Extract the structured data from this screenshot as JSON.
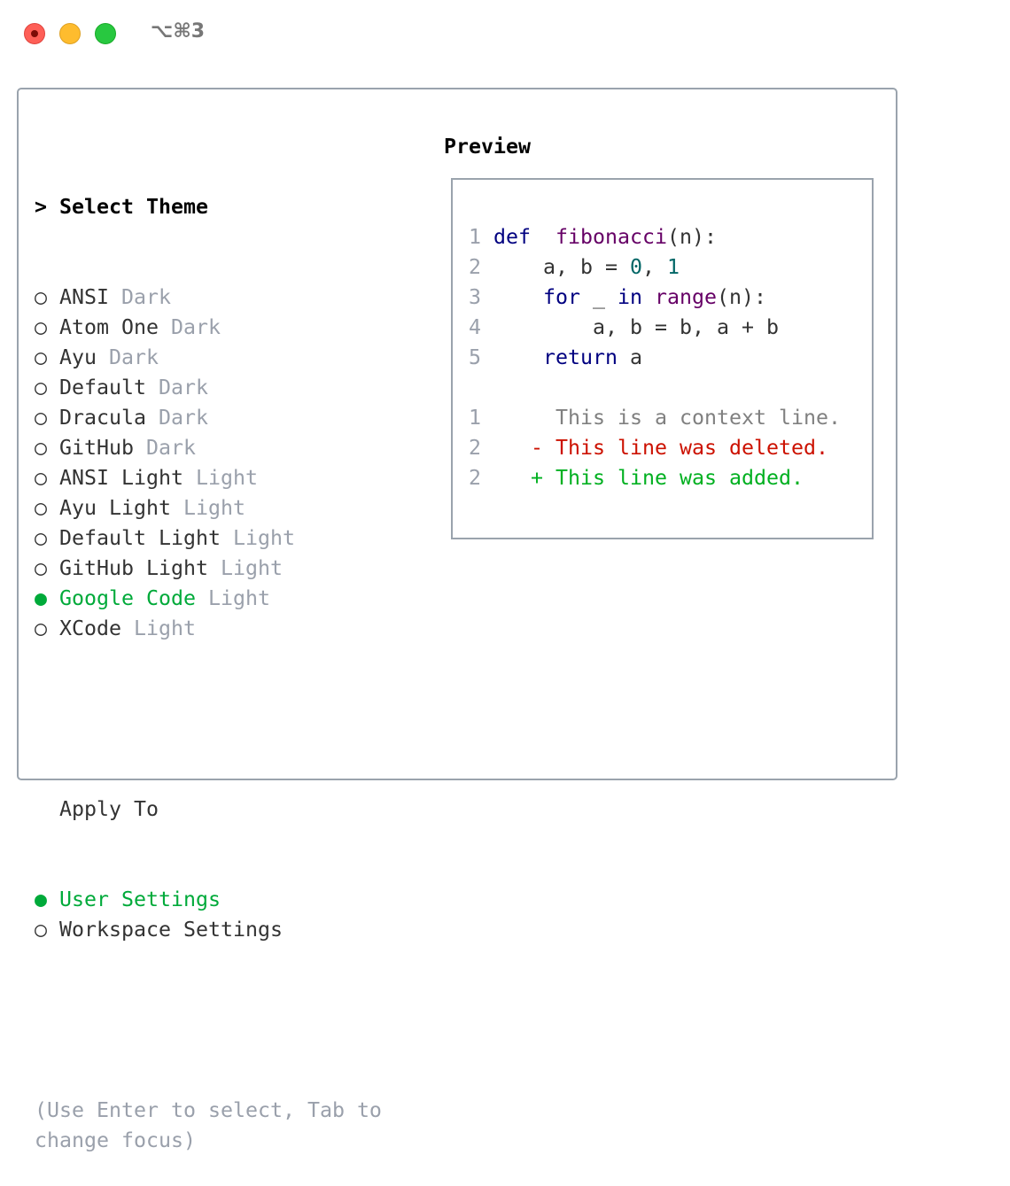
{
  "window": {
    "title": "⌥⌘3",
    "controls": [
      "close",
      "minimize",
      "zoom"
    ]
  },
  "theme_select": {
    "heading_marker": ">",
    "heading": "Select Theme",
    "items": [
      {
        "name": "ANSI",
        "type": "Dark",
        "selected": false
      },
      {
        "name": "Atom One",
        "type": "Dark",
        "selected": false
      },
      {
        "name": "Ayu",
        "type": "Dark",
        "selected": false
      },
      {
        "name": "Default",
        "type": "Dark",
        "selected": false
      },
      {
        "name": "Dracula",
        "type": "Dark",
        "selected": false
      },
      {
        "name": "GitHub",
        "type": "Dark",
        "selected": false
      },
      {
        "name": "ANSI Light",
        "type": "Light",
        "selected": false
      },
      {
        "name": "Ayu Light",
        "type": "Light",
        "selected": false
      },
      {
        "name": "Default Light",
        "type": "Light",
        "selected": false
      },
      {
        "name": "GitHub Light",
        "type": "Light",
        "selected": false
      },
      {
        "name": "Google Code",
        "type": "Light",
        "selected": true
      },
      {
        "name": "XCode",
        "type": "Light",
        "selected": false
      }
    ]
  },
  "apply_to": {
    "heading": "Apply To",
    "items": [
      {
        "name": "User Settings",
        "selected": true
      },
      {
        "name": "Workspace Settings",
        "selected": false
      }
    ]
  },
  "help": "(Use Enter to select, Tab to change focus)",
  "bullets": {
    "selected": "●",
    "unselected": "○"
  },
  "preview": {
    "title": "Preview",
    "code": [
      {
        "n": "1",
        "tokens": [
          [
            "kw",
            "def"
          ],
          [
            "",
            "  "
          ],
          [
            "fn",
            "fibonacci"
          ],
          [
            "",
            "(n):"
          ]
        ]
      },
      {
        "n": "2",
        "tokens": [
          [
            "",
            "    a, b = "
          ],
          [
            "num",
            "0"
          ],
          [
            "",
            ", "
          ],
          [
            "num",
            "1"
          ]
        ]
      },
      {
        "n": "3",
        "tokens": [
          [
            "",
            "    "
          ],
          [
            "kw",
            "for"
          ],
          [
            "",
            " _ "
          ],
          [
            "kw",
            "in"
          ],
          [
            "",
            " "
          ],
          [
            "fn",
            "range"
          ],
          [
            "",
            "(n):"
          ]
        ]
      },
      {
        "n": "4",
        "tokens": [
          [
            "",
            "        a, b = b, a + b"
          ]
        ]
      },
      {
        "n": "5",
        "tokens": [
          [
            "",
            "    "
          ],
          [
            "kw",
            "return"
          ],
          [
            "",
            " a"
          ]
        ]
      }
    ],
    "diff": [
      {
        "n": "1",
        "prefix": " ",
        "text": "This is a context line.",
        "kind": "ctx"
      },
      {
        "n": "2",
        "prefix": "-",
        "text": "This line was deleted.",
        "kind": "del"
      },
      {
        "n": "2",
        "prefix": "+",
        "text": "This line was added.",
        "kind": "add"
      }
    ]
  },
  "colors": {
    "selected": "#00aa3a",
    "keyword": "#000080",
    "function": "#660066",
    "number": "#006666",
    "deleted": "#cc1100",
    "added": "#00b020",
    "muted": "#9aa0ab"
  }
}
